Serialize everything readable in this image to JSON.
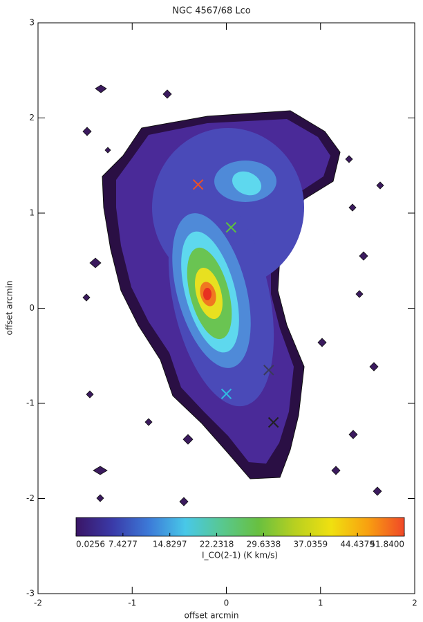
{
  "chart_data": {
    "type": "contour",
    "title": "NGC 4567/68 Lco",
    "xlabel": "offset arcmin",
    "ylabel": "offset arcmin",
    "xlim": [
      -2,
      2
    ],
    "ylim": [
      -3,
      3
    ],
    "xticks": [
      -2,
      -1,
      0,
      1,
      2
    ],
    "yticks": [
      -3,
      -2,
      -1,
      0,
      1,
      2,
      3
    ],
    "markers": [
      {
        "x": -0.3,
        "y": 1.3,
        "color": "#e8502a"
      },
      {
        "x": 0.05,
        "y": 0.85,
        "color": "#5cc040"
      },
      {
        "x": 0.45,
        "y": -0.65,
        "color": "#3a3a5a"
      },
      {
        "x": 0.0,
        "y": -0.9,
        "color": "#30b8e0"
      },
      {
        "x": 0.5,
        "y": -1.2,
        "color": "#202020"
      }
    ],
    "colorbar": {
      "label": "I_CO(2-1)  (K km/s)",
      "lim": [
        0.0256,
        51.84
      ],
      "ticks": [
        0.0256,
        7.4277,
        14.8297,
        22.2318,
        29.6338,
        37.0359,
        44.4379,
        {
          "value": 51.84,
          "label": "51.8400"
        }
      ],
      "colormap": [
        "#3a1566",
        "#3a3aa8",
        "#3c7ad8",
        "#48c8e8",
        "#58c890",
        "#68c040",
        "#b8d020",
        "#f0e010",
        "#f8a010",
        "#f04828"
      ]
    }
  }
}
